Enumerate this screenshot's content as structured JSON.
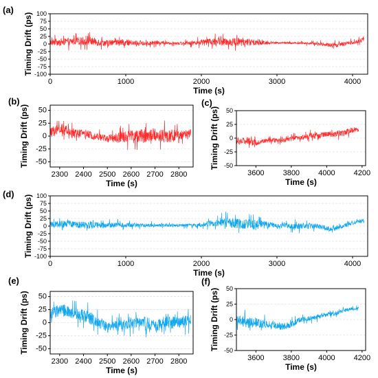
{
  "colors": {
    "red_series": "#ff2a2a",
    "blue_series": "#11a6ee",
    "grid": "#e3e3e3",
    "frame": "#000000"
  },
  "chart_data": [
    {
      "panel": "(a)",
      "type": "line",
      "xlabel": "Time (s)",
      "ylabel": "Timing Drift (ps)",
      "xlim": [
        0,
        4200
      ],
      "ylim": [
        -100,
        100
      ],
      "xticks": [
        0,
        1000,
        2000,
        3000,
        4000
      ],
      "yticks": [
        100,
        75,
        50,
        25,
        0,
        -25,
        -50,
        -75,
        -100
      ],
      "grid": true,
      "color": "red",
      "series": [
        {
          "x": [
            0,
            250,
            500,
            750,
            1000,
            1250,
            1500,
            1750,
            2000,
            2250,
            2500,
            2750,
            3000,
            3250,
            3500,
            3750,
            4000,
            4150
          ],
          "y": [
            5,
            8,
            10,
            3,
            5,
            2,
            4,
            3,
            6,
            8,
            7,
            5,
            4,
            3,
            2,
            -5,
            5,
            15
          ],
          "spread": [
            20,
            25,
            28,
            22,
            20,
            14,
            12,
            10,
            18,
            26,
            28,
            20,
            5,
            6,
            8,
            16,
            12,
            14
          ]
        }
      ]
    },
    {
      "panel": "(b)",
      "type": "line",
      "xlabel": "Time (s)",
      "ylabel": "Timing Drift (ps)",
      "xlim": [
        2260,
        2860
      ],
      "ylim": [
        -60,
        60
      ],
      "xticks": [
        2300,
        2400,
        2500,
        2600,
        2700,
        2800
      ],
      "yticks": [
        50,
        25,
        0,
        -25,
        -50
      ],
      "grid": true,
      "color": "red",
      "series": [
        {
          "x": [
            2260,
            2300,
            2350,
            2400,
            2450,
            2500,
            2550,
            2600,
            2650,
            2700,
            2750,
            2800,
            2850
          ],
          "y": [
            5,
            15,
            5,
            5,
            0,
            -5,
            -3,
            0,
            0,
            2,
            0,
            0,
            5
          ],
          "spread": [
            20,
            22,
            18,
            16,
            14,
            15,
            20,
            25,
            28,
            26,
            25,
            22,
            20
          ]
        }
      ]
    },
    {
      "panel": "(c)",
      "type": "line",
      "xlabel": "Time (s)",
      "ylabel": "Timing Drift (ps)",
      "xlim": [
        3490,
        4220
      ],
      "ylim": [
        -50,
        50
      ],
      "xticks": [
        3600,
        3800,
        4000,
        4200
      ],
      "yticks": [
        50,
        25,
        0,
        -25,
        -50
      ],
      "grid": true,
      "color": "red",
      "series": [
        {
          "x": [
            3490,
            3550,
            3600,
            3650,
            3700,
            3750,
            3800,
            3850,
            3900,
            3950,
            4000,
            4050,
            4100,
            4150,
            4180
          ],
          "y": [
            -5,
            -5,
            -8,
            -5,
            -4,
            -5,
            0,
            0,
            5,
            3,
            8,
            8,
            10,
            15,
            15
          ],
          "spread": [
            12,
            14,
            10,
            8,
            8,
            8,
            8,
            8,
            10,
            10,
            10,
            12,
            12,
            10,
            8
          ]
        }
      ]
    },
    {
      "panel": "(d)",
      "type": "line",
      "xlabel": "Time (s)",
      "ylabel": "Timing Drift (ps)",
      "xlim": [
        0,
        4200
      ],
      "ylim": [
        -100,
        100
      ],
      "xticks": [
        0,
        1000,
        2000,
        3000,
        4000
      ],
      "yticks": [
        100,
        75,
        50,
        25,
        0,
        -25,
        -50,
        -75,
        -100
      ],
      "grid": true,
      "color": "blue",
      "series": [
        {
          "x": [
            0,
            250,
            500,
            750,
            1000,
            1250,
            1500,
            1750,
            2000,
            2250,
            2500,
            2750,
            3000,
            3250,
            3500,
            3750,
            4000,
            4150
          ],
          "y": [
            5,
            8,
            3,
            3,
            3,
            3,
            3,
            3,
            3,
            15,
            8,
            5,
            3,
            0,
            0,
            -10,
            10,
            20
          ],
          "spread": [
            20,
            22,
            25,
            18,
            15,
            12,
            10,
            10,
            12,
            30,
            35,
            30,
            15,
            20,
            18,
            15,
            10,
            12
          ]
        }
      ]
    },
    {
      "panel": "(e)",
      "type": "line",
      "xlabel": "Time (s)",
      "ylabel": "Timing Drift (ps)",
      "xlim": [
        2260,
        2860
      ],
      "ylim": [
        -60,
        60
      ],
      "xticks": [
        2300,
        2400,
        2500,
        2600,
        2700,
        2800
      ],
      "yticks": [
        50,
        25,
        0,
        -25,
        -50
      ],
      "grid": true,
      "color": "blue",
      "series": [
        {
          "x": [
            2260,
            2300,
            2350,
            2400,
            2450,
            2500,
            2550,
            2600,
            2650,
            2700,
            2750,
            2800,
            2850
          ],
          "y": [
            15,
            25,
            20,
            15,
            5,
            -10,
            -5,
            0,
            0,
            -5,
            0,
            0,
            5
          ],
          "spread": [
            20,
            25,
            22,
            25,
            25,
            20,
            20,
            22,
            25,
            22,
            22,
            25,
            25
          ]
        }
      ]
    },
    {
      "panel": "(f)",
      "type": "line",
      "xlabel": "Time (s)",
      "ylabel": "Timing Drift (ps)",
      "xlim": [
        3490,
        4220
      ],
      "ylim": [
        -50,
        50
      ],
      "xticks": [
        3600,
        3800,
        4000,
        4200
      ],
      "yticks": [
        50,
        25,
        0,
        -25,
        -50
      ],
      "grid": true,
      "color": "blue",
      "series": [
        {
          "x": [
            3490,
            3550,
            3600,
            3650,
            3700,
            3750,
            3800,
            3850,
            3900,
            3950,
            4000,
            4050,
            4100,
            4150,
            4180
          ],
          "y": [
            0,
            -5,
            -5,
            -8,
            -8,
            -12,
            -8,
            0,
            2,
            5,
            8,
            10,
            15,
            18,
            18
          ],
          "spread": [
            15,
            18,
            16,
            14,
            12,
            12,
            10,
            8,
            8,
            8,
            8,
            8,
            6,
            5,
            4
          ]
        }
      ]
    }
  ]
}
